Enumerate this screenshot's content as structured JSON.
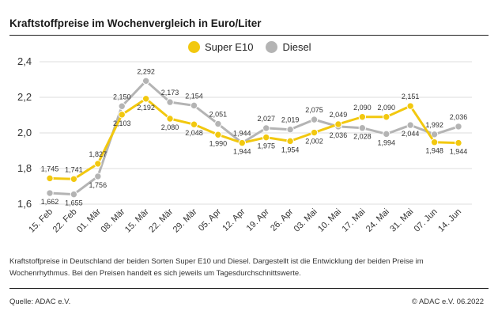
{
  "title": "Kraftstoffpreise im Wochenvergleich in Euro/Liter",
  "caption": "Kraftstoffpreise in Deutschland der beiden Sorten Super E10 und Diesel. Dargestellt ist die Entwicklung der beiden Preise im Wochenrhythmus. Bei den Preisen handelt es sich jeweils um Tagesdurchschnittswerte.",
  "source": "Quelle: ADAC e.V.",
  "copyright": "© ADAC e.V. 06.2022",
  "colors": {
    "super": "#f2c80f",
    "diesel": "#b4b4b4",
    "grid": "#dcdcdc",
    "text": "#333333"
  },
  "chart_data": {
    "type": "line",
    "categories": [
      "15. Feb",
      "22. Feb",
      "01. Mär",
      "08. Mär",
      "15. Mär",
      "22. Mär",
      "29. Mär",
      "05. Apr",
      "12. Apr",
      "19. Apr",
      "26. Apr",
      "03. Mai",
      "10. Mai",
      "17. Mai",
      "24. Mai",
      "31. Mai",
      "07. Jun",
      "14. Jun"
    ],
    "ylim": [
      1.6,
      2.4
    ],
    "yticks": [
      "1,6",
      "1,8",
      "2,0",
      "2,2",
      "2,4"
    ],
    "grid": true,
    "legend": "top",
    "series": [
      {
        "name": "Super E10",
        "color_key": "super",
        "values": [
          1.745,
          1.741,
          1.827,
          2.103,
          2.192,
          2.08,
          2.048,
          1.99,
          1.944,
          1.975,
          1.954,
          2.002,
          2.049,
          2.09,
          2.09,
          2.151,
          1.948,
          1.944
        ],
        "labels": [
          "1,745",
          "1,741",
          "1,827",
          "2,103",
          "2,192",
          "2,080",
          "2,048",
          "1,990",
          "1,944",
          "1,975",
          "1,954",
          "2,002",
          "2,049",
          "2,090",
          "2,090",
          "2,151",
          "1,948",
          "1,944"
        ]
      },
      {
        "name": "Diesel",
        "color_key": "diesel",
        "values": [
          1.662,
          1.655,
          1.756,
          2.15,
          2.292,
          2.173,
          2.154,
          2.051,
          1.944,
          2.027,
          2.019,
          2.075,
          2.036,
          2.028,
          1.994,
          2.044,
          1.992,
          2.036
        ],
        "labels": [
          "1,662",
          "1,655",
          "1,756",
          "2,150",
          "2,292",
          "2,173",
          "2,154",
          "2,051",
          "1,944",
          "2,027",
          "2,019",
          "2,075",
          "2,036",
          "2,028",
          "1,994",
          "2,044",
          "1,992",
          "2,036"
        ]
      }
    ]
  }
}
